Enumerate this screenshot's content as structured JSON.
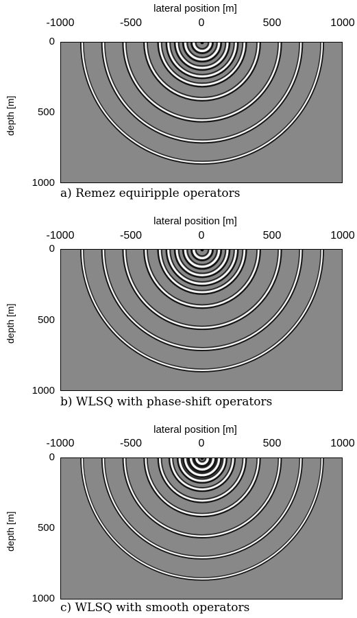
{
  "figure": {
    "panels": [
      {
        "caption": "a) Remez equiripple operators",
        "x_title": "lateral position [m]",
        "y_title": "depth [m]",
        "x_ticks": [
          "-1000",
          "-500",
          "0",
          "500",
          "1000"
        ],
        "y_ticks": [
          "0",
          "500",
          "1000"
        ]
      },
      {
        "caption": "b) WLSQ with phase-shift operators",
        "x_title": "lateral position [m]",
        "y_title": "depth [m]",
        "x_ticks": [
          "-1000",
          "-500",
          "0",
          "500",
          "1000"
        ],
        "y_ticks": [
          "0",
          "500",
          "1000"
        ]
      },
      {
        "caption": "c) WLSQ with smooth operators",
        "x_title": "lateral position [m]",
        "y_title": "depth [m]",
        "x_ticks": [
          "-1000",
          "-500",
          "0",
          "500",
          "1000"
        ],
        "y_ticks": [
          "0",
          "500",
          "1000"
        ]
      }
    ]
  },
  "chart_data": [
    {
      "type": "heatmap",
      "x_range": [
        -1000,
        1000
      ],
      "y_range": [
        0,
        1000
      ],
      "wavefront_radii": [
        60,
        120,
        180,
        240,
        300,
        400,
        550,
        700,
        850
      ],
      "colormap": [
        "#000000",
        "#888888",
        "#ffffff"
      ]
    },
    {
      "type": "heatmap",
      "x_range": [
        -1000,
        1000
      ],
      "y_range": [
        0,
        1000
      ],
      "wavefront_radii": [
        60,
        120,
        180,
        240,
        300,
        400,
        550,
        700,
        850
      ],
      "colormap": [
        "#000000",
        "#888888",
        "#ffffff"
      ]
    },
    {
      "type": "heatmap",
      "x_range": [
        -1000,
        1000
      ],
      "y_range": [
        0,
        1000
      ],
      "wavefront_radii": [
        40,
        80,
        120,
        160,
        220,
        300,
        400,
        550,
        700,
        850
      ],
      "colormap": [
        "#000000",
        "#888888",
        "#ffffff"
      ]
    }
  ]
}
